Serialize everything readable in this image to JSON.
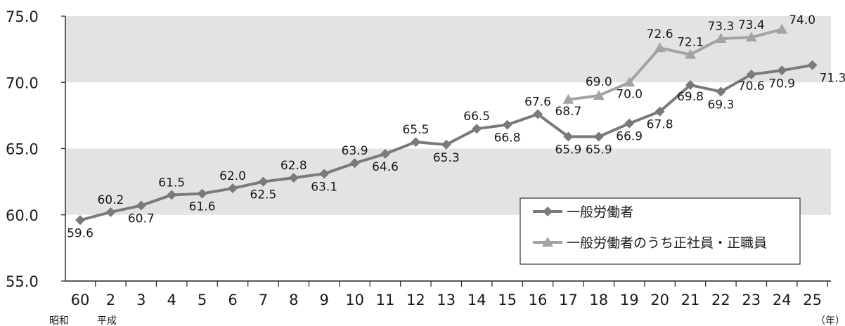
{
  "chart_data": {
    "type": "line",
    "categories": [
      "60",
      "2",
      "3",
      "4",
      "5",
      "6",
      "7",
      "8",
      "9",
      "10",
      "11",
      "12",
      "13",
      "14",
      "15",
      "16",
      "17",
      "18",
      "19",
      "20",
      "21",
      "22",
      "23",
      "24",
      "25"
    ],
    "era_labels": [
      "昭和",
      "平成"
    ],
    "x_unit": "（年）",
    "ylim": [
      55.0,
      75.0
    ],
    "yticks": [
      "55.0",
      "60.0",
      "65.0",
      "70.0",
      "75.0"
    ],
    "grid": "alternating horizontal bands",
    "legend_position": "lower-right",
    "series": [
      {
        "name": "一般労働者",
        "marker": "diamond",
        "color": "#7a7a7a",
        "values": [
          59.6,
          60.2,
          60.7,
          61.5,
          61.6,
          62.0,
          62.5,
          62.8,
          63.1,
          63.9,
          64.6,
          65.5,
          65.3,
          66.5,
          66.8,
          67.6,
          65.9,
          65.9,
          66.9,
          67.8,
          69.8,
          69.3,
          70.6,
          70.9,
          71.3
        ],
        "labels": [
          "59.6",
          "60.2",
          "60.7",
          "61.5",
          "61.6",
          "62.0",
          "62.5",
          "62.8",
          "63.1",
          "63.9",
          "64.6",
          "65.5",
          "65.3",
          "66.5",
          "66.8",
          "67.6",
          "65.9",
          "65.9",
          "66.9",
          "67.8",
          "69.8",
          "69.3",
          "70.6",
          "70.9",
          "71.3"
        ]
      },
      {
        "name": "一般労働者のうち正社員・正職員",
        "marker": "triangle",
        "color": "#a3a3a3",
        "values": [
          null,
          null,
          null,
          null,
          null,
          null,
          null,
          null,
          null,
          null,
          null,
          null,
          null,
          null,
          null,
          null,
          68.7,
          69.0,
          70.0,
          72.6,
          72.1,
          73.3,
          73.4,
          74.0,
          null
        ],
        "labels": [
          null,
          null,
          null,
          null,
          null,
          null,
          null,
          null,
          null,
          null,
          null,
          null,
          null,
          null,
          null,
          null,
          "68.7",
          "69.0",
          "70.0",
          "72.6",
          "72.1",
          "73.3",
          "73.4",
          "74.0",
          null
        ]
      }
    ]
  }
}
